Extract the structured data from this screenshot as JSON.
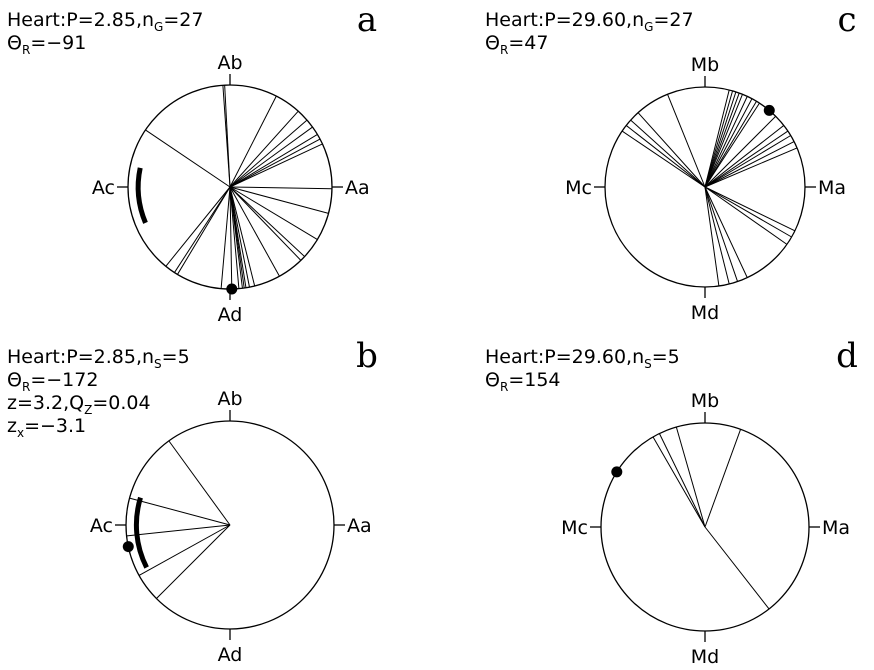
{
  "chart_data": [
    {
      "panel": "a",
      "type": "circular_plot",
      "header_lines": [
        {
          "prefix": "Heart:P=2.85,n",
          "sub": "G",
          "suffix": "=27"
        },
        {
          "prefix": "Θ",
          "sub": "R",
          "suffix": "=−91"
        }
      ],
      "axis_labels": {
        "top": "Ab",
        "right": "Aa",
        "bottom": "Ad",
        "left": "Ac"
      },
      "n": 27,
      "radial_angles_deg": [
        -4,
        -3,
        27,
        42,
        49,
        54,
        59,
        62,
        65,
        91,
        105,
        121,
        133,
        136,
        151,
        166,
        169,
        171,
        172,
        173,
        175,
        179,
        185,
        211,
        213,
        219,
        304
      ],
      "mean_direction_deg": -91,
      "arc_deg": [
        -113,
        -78
      ],
      "dot_deg": 179
    },
    {
      "panel": "b",
      "type": "circular_plot",
      "header_lines": [
        {
          "prefix": "Heart:P=2.85,n",
          "sub": "S",
          "suffix": "=5"
        },
        {
          "prefix": "Θ",
          "sub": "R",
          "suffix": "=−172"
        },
        {
          "prefix": "z=3.2,Q",
          "sub": "Z",
          "suffix": "=0.04"
        },
        {
          "prefix": "z",
          "sub": "x",
          "suffix": "=−3.1"
        }
      ],
      "axis_labels": {
        "top": "Ab",
        "right": "Aa",
        "bottom": "Ad",
        "left": "Ac"
      },
      "n": 5,
      "radial_angles_deg": [
        -36,
        -75,
        -96,
        -119,
        -135
      ],
      "mean_direction_deg": -172,
      "arc_deg": [
        -117,
        -73
      ],
      "dot_deg": -102
    },
    {
      "panel": "c",
      "type": "circular_plot",
      "header_lines": [
        {
          "prefix": "Heart:P=29.60,n",
          "sub": "G",
          "suffix": "=27"
        },
        {
          "prefix": "Θ",
          "sub": "R",
          "suffix": "=47"
        }
      ],
      "axis_labels": {
        "top": "Mb",
        "right": "Ma",
        "bottom": "Md",
        "left": "Mc"
      },
      "n": 27,
      "radial_angles_deg": [
        -22,
        -42,
        -48,
        -52,
        -56,
        14,
        16,
        18,
        20,
        22,
        25,
        28,
        31,
        33,
        45,
        52,
        56,
        59,
        63,
        67,
        116,
        120,
        125,
        155,
        161,
        166,
        172
      ],
      "mean_direction_deg": 47,
      "dot_deg": 40
    },
    {
      "panel": "d",
      "type": "circular_plot",
      "header_lines": [
        {
          "prefix": "Heart:P=29.60,n",
          "sub": "S",
          "suffix": "=5"
        },
        {
          "prefix": "Θ",
          "sub": "R",
          "suffix": "=154"
        }
      ],
      "axis_labels": {
        "top": "Mb",
        "right": "Ma",
        "bottom": "Md",
        "left": "Mc"
      },
      "n": 5,
      "radial_angles_deg": [
        -16,
        -26,
        -30,
        20,
        142
      ],
      "mean_direction_deg": 154,
      "dot_deg": -58
    }
  ]
}
